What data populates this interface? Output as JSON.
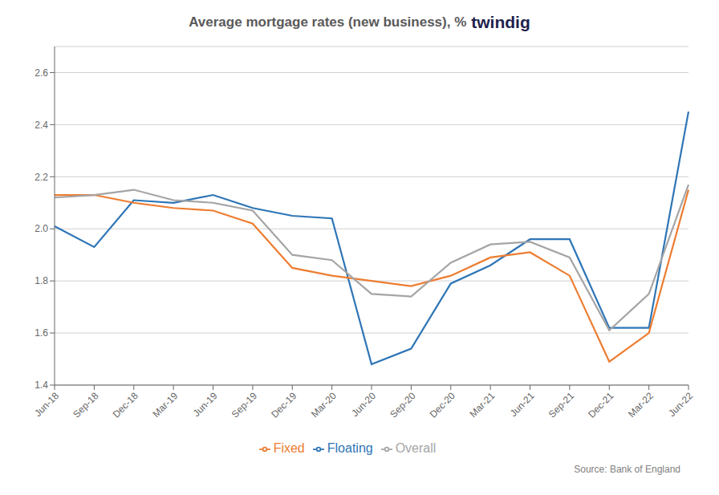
{
  "chart_data": {
    "type": "line",
    "title": "Average mortgage rates (new business), %",
    "subtitle": "twindig",
    "annotations": [
      "Source: Bank of England"
    ],
    "categories": [
      "Jun-18",
      "Sep-18",
      "Dec-18",
      "Mar-19",
      "Jun-19",
      "Sep-19",
      "Dec-19",
      "Mar-20",
      "Jun-20",
      "Sep-20",
      "Dec-20",
      "Mar-21",
      "Jun-21",
      "Sep-21",
      "Dec-21",
      "Mar-22",
      "Jun-22"
    ],
    "series": [
      {
        "name": "Floating",
        "color": "#2e75b6",
        "values": [
          2.01,
          1.93,
          2.11,
          2.1,
          2.13,
          2.08,
          2.05,
          2.04,
          1.48,
          1.54,
          1.79,
          1.86,
          1.96,
          1.96,
          1.62,
          1.62,
          2.45
        ]
      },
      {
        "name": "Fixed",
        "color": "#ed7d31",
        "values": [
          2.13,
          2.13,
          2.1,
          2.08,
          2.07,
          2.02,
          1.85,
          1.82,
          1.8,
          1.78,
          1.82,
          1.89,
          1.91,
          1.82,
          1.49,
          1.6,
          2.15
        ]
      },
      {
        "name": "Overall",
        "color": "#a5a5a5",
        "values": [
          2.12,
          2.13,
          2.15,
          2.11,
          2.1,
          2.07,
          1.9,
          1.88,
          1.75,
          1.74,
          1.87,
          1.94,
          1.95,
          1.89,
          1.61,
          1.75,
          2.17
        ]
      }
    ],
    "ylim": [
      1.4,
      2.7
    ],
    "yticks": [
      1.4,
      1.6,
      1.8,
      {
        "value": 2,
        "label": "2.0"
      },
      2.2,
      2.4,
      2.6
    ],
    "grid": true,
    "legend": "bottom"
  }
}
